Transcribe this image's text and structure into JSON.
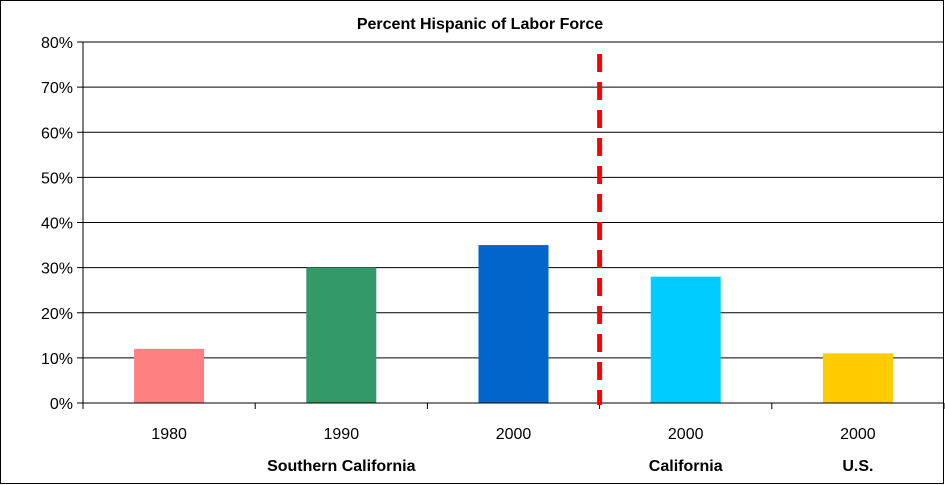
{
  "chart_data": {
    "type": "bar",
    "title": "Percent Hispanic of Labor Force",
    "xlabel": "",
    "ylabel": "",
    "ylim": [
      0,
      80
    ],
    "yticks": [
      "0%",
      "10%",
      "20%",
      "30%",
      "40%",
      "50%",
      "60%",
      "70%",
      "80%"
    ],
    "grid": true,
    "legend": "none",
    "categories": [
      "1980",
      "1990",
      "2000",
      "2000",
      "2000"
    ],
    "values": [
      12,
      30,
      35,
      28,
      11
    ],
    "bar_colors": [
      "#ff8080",
      "#339966",
      "#0066cc",
      "#00ccff",
      "#ffcc00"
    ],
    "groups": [
      {
        "label": "Southern California",
        "categories": [
          0,
          1,
          2
        ]
      },
      {
        "label": "California",
        "categories": [
          3
        ]
      },
      {
        "label": "U.S.",
        "categories": [
          4
        ]
      }
    ],
    "divider": {
      "after_category": 2,
      "color": "#ff0000",
      "style": "dashed"
    }
  }
}
